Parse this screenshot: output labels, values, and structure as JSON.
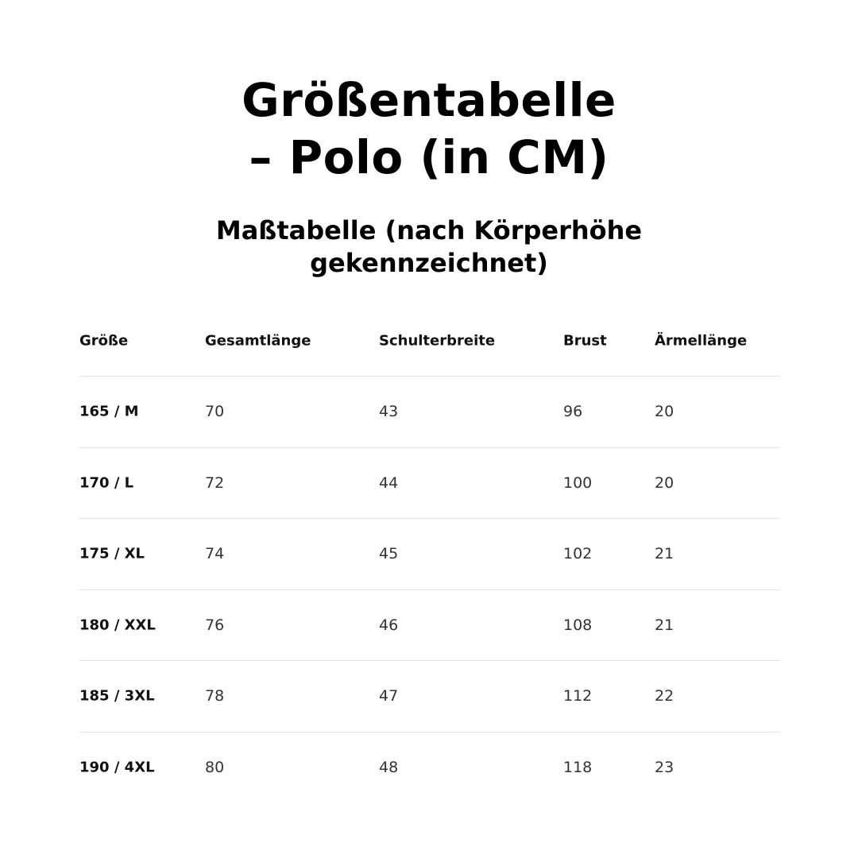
{
  "title": {
    "line1": "Größentabelle",
    "line2": "– Polo (in CM)"
  },
  "subtitle": {
    "line1": "Maßtabelle (nach Körperhöhe",
    "line2": "gekennzeichnet)"
  },
  "table": {
    "headers": [
      "Größe",
      "Gesamtlänge",
      "Schulterbreite",
      "Brust",
      "Ärmellänge"
    ],
    "rows": [
      [
        "165 / M",
        "70",
        "43",
        "96",
        "20"
      ],
      [
        "170 / L",
        "72",
        "44",
        "100",
        "20"
      ],
      [
        "175 / XL",
        "74",
        "45",
        "102",
        "21"
      ],
      [
        "180 / XXL",
        "76",
        "46",
        "108",
        "21"
      ],
      [
        "185 / 3XL",
        "78",
        "47",
        "112",
        "22"
      ],
      [
        "190 / 4XL",
        "80",
        "48",
        "118",
        "23"
      ]
    ]
  }
}
